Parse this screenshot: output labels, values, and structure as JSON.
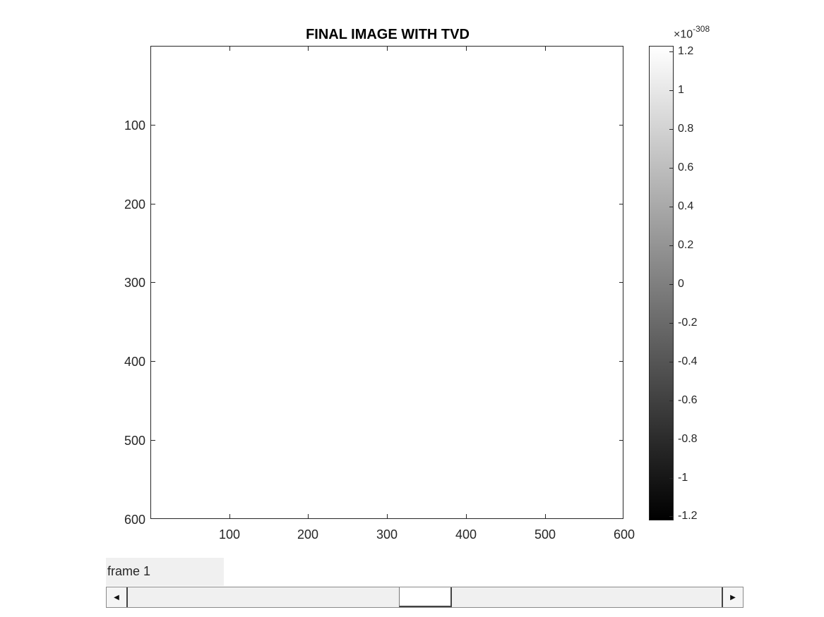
{
  "figure": {
    "title": "FINAL IMAGE WITH TVD",
    "y_ticks": [
      "100",
      "200",
      "300",
      "400",
      "500",
      "600"
    ],
    "x_ticks": [
      "100",
      "200",
      "300",
      "400",
      "500",
      "600"
    ]
  },
  "colorbar": {
    "multiplier": "×10",
    "exponent": "-308",
    "ticks": [
      "1.2",
      "1",
      "0.8",
      "0.6",
      "0.4",
      "0.2",
      "0",
      "-0.2",
      "-0.4",
      "-0.6",
      "-0.8",
      "-1",
      "-1.2"
    ],
    "colormap": "gray"
  },
  "controls": {
    "frame_label": "frame 1",
    "slider_left_arrow": "◀",
    "slider_right_arrow": "▶"
  }
}
